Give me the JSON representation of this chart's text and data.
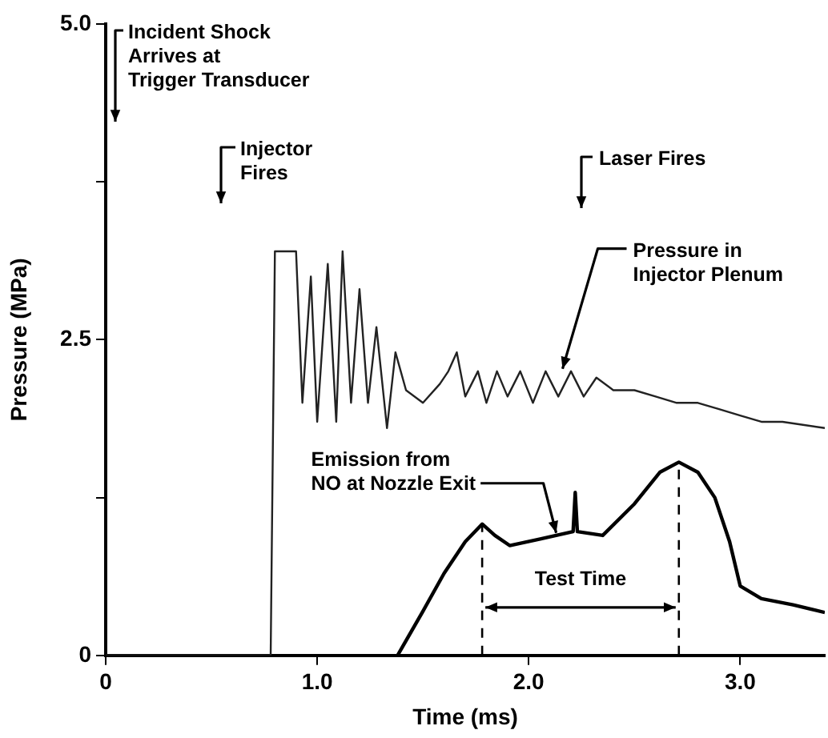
{
  "chart_data": {
    "type": "line",
    "xlabel": "Time (ms)",
    "ylabel": "Pressure (MPa)",
    "xlim": [
      0,
      3.4
    ],
    "xticks": [
      0,
      {
        "value": 1,
        "label": "1.0"
      },
      {
        "value": 2,
        "label": "2.0"
      },
      {
        "value": 3,
        "label": "3.0"
      }
    ],
    "ylim": [
      0,
      5
    ],
    "yticks": [
      0,
      {
        "value": 1.25,
        "label": null
      },
      {
        "value": 2.5,
        "label": "2.5"
      },
      {
        "value": 3.75,
        "label": null
      },
      {
        "value": 5,
        "label": "5.0"
      }
    ],
    "grid": false,
    "legend": false,
    "marker": "none",
    "series": [
      {
        "color": "#222222",
        "x": [
          0,
          0.78,
          0.8,
          0.9,
          0.93,
          0.97,
          1.0,
          1.05,
          1.09,
          1.12,
          1.16,
          1.2,
          1.24,
          1.28,
          1.33,
          1.37,
          1.42,
          1.5,
          1.58,
          1.62,
          1.66,
          1.7,
          1.76,
          1.8,
          1.85,
          1.9,
          1.96,
          2.02,
          2.08,
          2.14,
          2.2,
          2.26,
          2.32,
          2.4,
          2.5,
          2.6,
          2.7,
          2.8,
          2.9,
          3.0,
          3.1,
          3.2,
          3.4
        ],
        "values": [
          0,
          0,
          3.2,
          3.2,
          2.0,
          3.0,
          1.85,
          3.1,
          1.85,
          3.2,
          2.0,
          2.9,
          2.0,
          2.6,
          1.8,
          2.4,
          2.1,
          2.0,
          2.15,
          2.25,
          2.4,
          2.05,
          2.25,
          2.0,
          2.25,
          2.05,
          2.25,
          2.0,
          2.25,
          2.05,
          2.25,
          2.05,
          2.2,
          2.1,
          2.1,
          2.05,
          2.0,
          2.0,
          1.95,
          1.9,
          1.85,
          1.85,
          1.8
        ]
      },
      {
        "color": "#000000",
        "x": [
          1.38,
          1.5,
          1.6,
          1.7,
          1.78,
          1.84,
          1.91,
          2.05,
          2.21,
          2.22,
          2.23,
          2.35,
          2.5,
          2.62,
          2.71,
          2.8,
          2.88,
          2.95,
          3.0,
          3.1,
          3.25,
          3.4
        ],
        "values": [
          0,
          0.35,
          0.65,
          0.9,
          1.04,
          0.95,
          0.87,
          0.92,
          0.98,
          1.29,
          0.98,
          0.95,
          1.2,
          1.45,
          1.53,
          1.45,
          1.25,
          0.9,
          0.55,
          0.45,
          0.4,
          0.34
        ]
      }
    ],
    "ref_lines": [
      {
        "axis": "x",
        "value": 1.78,
        "line_style": "dashed"
      },
      {
        "axis": "x",
        "value": 2.71,
        "line_style": "dashed"
      }
    ],
    "annotations": [
      "Incident Shock\nArrives at\nTrigger Transducer",
      "Injector\nFires",
      "Laser Fires",
      {
        "text": "Pressure in\nInjector Plenum",
        "x": 2.16,
        "y": 2.27
      },
      {
        "text": "Emission from\nNO at Nozzle Exit",
        "x": 2.13,
        "y": 0.97
      },
      "Test Time"
    ]
  }
}
